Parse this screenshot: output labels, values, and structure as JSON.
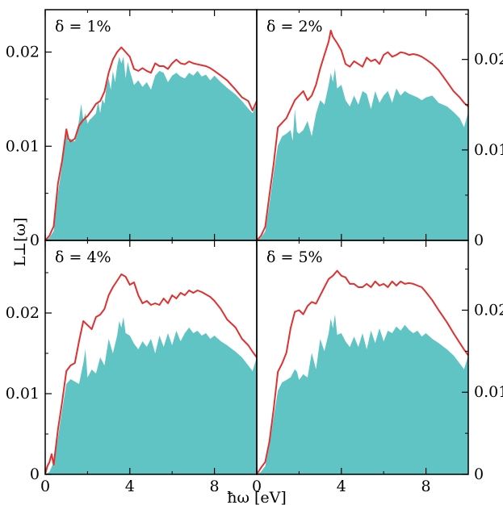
{
  "figure": {
    "xlabel": "ħω [eV]",
    "ylabel": "L⊥[ω]"
  },
  "chart_data": [
    {
      "type": "area",
      "label": "δ = 1%",
      "label_position": "top-left",
      "xlim": [
        0,
        10
      ],
      "ylim": [
        0,
        0.0245
      ],
      "xticks": [
        {
          "v": 0,
          "label": "0"
        },
        {
          "v": 4,
          "label": "4"
        },
        {
          "v": 8,
          "label": "8"
        }
      ],
      "yticks": [
        {
          "v": 0,
          "label": "0"
        },
        {
          "v": 0.01,
          "label": "0.01"
        },
        {
          "v": 0.02,
          "label": "0.02"
        }
      ],
      "ytick_side": "left",
      "series": [
        {
          "role": "fill",
          "color": "#5fc4c3",
          "x": [
            0,
            0.2,
            0.4,
            0.6,
            0.8,
            1.0,
            1.1,
            1.2,
            1.4,
            1.5,
            1.6,
            1.7,
            1.8,
            1.9,
            2.0,
            2.1,
            2.2,
            2.4,
            2.5,
            2.6,
            2.7,
            2.8,
            2.9,
            3.0,
            3.1,
            3.2,
            3.3,
            3.4,
            3.5,
            3.6,
            3.7,
            3.8,
            3.9,
            4.0,
            4.2,
            4.4,
            4.6,
            4.8,
            5.0,
            5.2,
            5.4,
            5.6,
            5.8,
            6.0,
            6.2,
            6.4,
            6.6,
            6.8,
            7.0,
            7.2,
            7.4,
            7.6,
            7.8,
            8.0,
            8.3,
            8.6,
            9.0,
            9.3,
            9.6,
            9.8,
            10.0
          ],
          "y": [
            0,
            0.0003,
            0.001,
            0.005,
            0.008,
            0.0115,
            0.0105,
            0.0108,
            0.0105,
            0.0112,
            0.0128,
            0.0145,
            0.0128,
            0.0135,
            0.0124,
            0.0128,
            0.013,
            0.0135,
            0.0148,
            0.0135,
            0.015,
            0.0145,
            0.0165,
            0.0172,
            0.016,
            0.018,
            0.0168,
            0.0185,
            0.0195,
            0.0188,
            0.0195,
            0.0172,
            0.019,
            0.018,
            0.0165,
            0.017,
            0.0163,
            0.0168,
            0.016,
            0.0175,
            0.018,
            0.0178,
            0.0168,
            0.0175,
            0.0178,
            0.0174,
            0.0172,
            0.0178,
            0.0175,
            0.018,
            0.0174,
            0.0176,
            0.017,
            0.0175,
            0.0168,
            0.0162,
            0.0155,
            0.0148,
            0.014,
            0.0135,
            0.0145
          ]
        },
        {
          "role": "line",
          "color": "#e03030",
          "x": [
            0,
            0.2,
            0.4,
            0.6,
            0.8,
            1.0,
            1.1,
            1.2,
            1.4,
            1.6,
            1.8,
            2.0,
            2.2,
            2.4,
            2.6,
            2.8,
            3.0,
            3.2,
            3.4,
            3.6,
            3.8,
            4.0,
            4.2,
            4.4,
            4.6,
            4.8,
            5.0,
            5.2,
            5.4,
            5.6,
            5.8,
            6.0,
            6.2,
            6.4,
            6.6,
            6.8,
            7.0,
            7.2,
            7.4,
            7.6,
            7.8,
            8.0,
            8.3,
            8.6,
            9.0,
            9.3,
            9.6,
            9.8,
            10.0
          ],
          "y": [
            0,
            0.0005,
            0.0015,
            0.006,
            0.0085,
            0.0118,
            0.0108,
            0.0105,
            0.0108,
            0.0122,
            0.0128,
            0.0132,
            0.0138,
            0.0145,
            0.0148,
            0.0158,
            0.0178,
            0.0192,
            0.02,
            0.0205,
            0.02,
            0.0195,
            0.0182,
            0.018,
            0.0183,
            0.018,
            0.0178,
            0.0188,
            0.0185,
            0.0185,
            0.0182,
            0.0188,
            0.0192,
            0.0188,
            0.0187,
            0.019,
            0.0188,
            0.0187,
            0.0186,
            0.0185,
            0.0183,
            0.018,
            0.0175,
            0.017,
            0.016,
            0.0152,
            0.0148,
            0.0138,
            0.0148
          ]
        }
      ]
    },
    {
      "type": "area",
      "label": "δ = 2%",
      "label_position": "top-left",
      "xlim": [
        0,
        10
      ],
      "ylim": [
        0,
        0.0255
      ],
      "xticks": [
        {
          "v": 0,
          "label": "0"
        },
        {
          "v": 4,
          "label": "4"
        },
        {
          "v": 8,
          "label": "8"
        }
      ],
      "yticks": [
        {
          "v": 0,
          "label": "0"
        },
        {
          "v": 0.01,
          "label": "0.01"
        },
        {
          "v": 0.02,
          "label": "0.02"
        }
      ],
      "ytick_side": "right",
      "series": [
        {
          "role": "fill",
          "color": "#5fc4c3",
          "x": [
            0,
            0.2,
            0.4,
            0.6,
            0.8,
            1.0,
            1.2,
            1.4,
            1.6,
            1.7,
            1.8,
            1.9,
            2.0,
            2.2,
            2.4,
            2.6,
            2.8,
            3.0,
            3.2,
            3.4,
            3.5,
            3.6,
            3.7,
            3.8,
            4.0,
            4.2,
            4.4,
            4.6,
            4.8,
            5.0,
            5.2,
            5.4,
            5.6,
            5.8,
            6.0,
            6.2,
            6.4,
            6.6,
            6.8,
            7.0,
            7.2,
            7.4,
            7.6,
            7.8,
            8.0,
            8.3,
            8.6,
            9.0,
            9.3,
            9.6,
            9.8,
            10.0
          ],
          "y": [
            0,
            0.0003,
            0.001,
            0.004,
            0.0075,
            0.0105,
            0.0115,
            0.0118,
            0.0122,
            0.011,
            0.0145,
            0.012,
            0.0118,
            0.0122,
            0.0132,
            0.0115,
            0.014,
            0.0155,
            0.015,
            0.0172,
            0.0185,
            0.0175,
            0.019,
            0.0168,
            0.0172,
            0.0155,
            0.0148,
            0.016,
            0.015,
            0.0165,
            0.0162,
            0.0145,
            0.0165,
            0.0152,
            0.016,
            0.0165,
            0.0152,
            0.0168,
            0.016,
            0.0165,
            0.0162,
            0.016,
            0.0158,
            0.0155,
            0.0158,
            0.016,
            0.0152,
            0.0148,
            0.0142,
            0.0135,
            0.0125,
            0.0142
          ]
        },
        {
          "role": "line",
          "color": "#e03030",
          "x": [
            0,
            0.2,
            0.4,
            0.6,
            0.8,
            1.0,
            1.2,
            1.4,
            1.6,
            1.8,
            2.0,
            2.2,
            2.4,
            2.6,
            2.8,
            3.0,
            3.2,
            3.4,
            3.5,
            3.6,
            3.8,
            4.0,
            4.2,
            4.4,
            4.6,
            4.8,
            5.0,
            5.2,
            5.4,
            5.6,
            5.8,
            6.0,
            6.2,
            6.4,
            6.6,
            6.8,
            7.0,
            7.2,
            7.4,
            7.6,
            7.8,
            8.0,
            8.3,
            8.6,
            9.0,
            9.3,
            9.6,
            9.8,
            10.0
          ],
          "y": [
            0,
            0.0005,
            0.0015,
            0.005,
            0.0085,
            0.0125,
            0.013,
            0.0135,
            0.0145,
            0.0155,
            0.016,
            0.0165,
            0.0155,
            0.016,
            0.0172,
            0.019,
            0.0205,
            0.022,
            0.0232,
            0.0225,
            0.0218,
            0.021,
            0.0195,
            0.0192,
            0.0198,
            0.0195,
            0.0192,
            0.0202,
            0.0198,
            0.02,
            0.0195,
            0.0205,
            0.0208,
            0.0203,
            0.0205,
            0.0208,
            0.0207,
            0.0205,
            0.0206,
            0.0205,
            0.0203,
            0.02,
            0.0195,
            0.0188,
            0.0175,
            0.0165,
            0.0158,
            0.0152,
            0.0148
          ]
        }
      ]
    },
    {
      "type": "area",
      "label": "δ = 4%",
      "label_position": "top-left",
      "xlim": [
        0,
        10
      ],
      "ylim": [
        0,
        0.029
      ],
      "xticks": [
        {
          "v": 0,
          "label": "0"
        },
        {
          "v": 4,
          "label": "4"
        },
        {
          "v": 8,
          "label": "8"
        }
      ],
      "yticks": [
        {
          "v": 0,
          "label": "0"
        },
        {
          "v": 0.01,
          "label": "0.01"
        },
        {
          "v": 0.02,
          "label": "0.02"
        }
      ],
      "ytick_side": "left",
      "series": [
        {
          "role": "fill",
          "color": "#5fc4c3",
          "x": [
            0,
            0.2,
            0.4,
            0.6,
            0.8,
            1.0,
            1.2,
            1.4,
            1.6,
            1.8,
            1.9,
            2.0,
            2.2,
            2.4,
            2.6,
            2.8,
            3.0,
            3.2,
            3.4,
            3.5,
            3.6,
            3.7,
            3.8,
            4.0,
            4.2,
            4.4,
            4.6,
            4.8,
            5.0,
            5.2,
            5.4,
            5.6,
            5.8,
            6.0,
            6.2,
            6.4,
            6.6,
            6.8,
            7.0,
            7.2,
            7.4,
            7.6,
            7.8,
            8.0,
            8.3,
            8.6,
            9.0,
            9.3,
            9.6,
            9.8,
            10.0
          ],
          "y": [
            0,
            0.0003,
            0.0015,
            0.0045,
            0.008,
            0.0112,
            0.0118,
            0.0115,
            0.0112,
            0.0138,
            0.0155,
            0.012,
            0.013,
            0.0125,
            0.0145,
            0.0135,
            0.0168,
            0.015,
            0.0172,
            0.019,
            0.0182,
            0.0195,
            0.0175,
            0.0172,
            0.0162,
            0.0155,
            0.0165,
            0.0158,
            0.0168,
            0.015,
            0.0172,
            0.0158,
            0.0175,
            0.016,
            0.0178,
            0.0165,
            0.0175,
            0.0182,
            0.0175,
            0.0178,
            0.0172,
            0.0175,
            0.0168,
            0.0172,
            0.0165,
            0.016,
            0.0152,
            0.0145,
            0.0135,
            0.0128,
            0.0145
          ]
        },
        {
          "role": "line",
          "color": "#e03030",
          "x": [
            0,
            0.1,
            0.2,
            0.3,
            0.4,
            0.6,
            0.8,
            1.0,
            1.2,
            1.4,
            1.6,
            1.8,
            2.0,
            2.2,
            2.4,
            2.6,
            2.8,
            3.0,
            3.2,
            3.4,
            3.6,
            3.8,
            4.0,
            4.2,
            4.4,
            4.6,
            4.8,
            5.0,
            5.2,
            5.4,
            5.6,
            5.8,
            6.0,
            6.2,
            6.4,
            6.6,
            6.8,
            7.0,
            7.2,
            7.4,
            7.6,
            7.8,
            8.0,
            8.3,
            8.6,
            9.0,
            9.3,
            9.6,
            9.8,
            10.0
          ],
          "y": [
            0,
            0.001,
            0.0015,
            0.0025,
            0.0012,
            0.0055,
            0.009,
            0.0128,
            0.0135,
            0.0138,
            0.0165,
            0.019,
            0.0185,
            0.018,
            0.0195,
            0.0198,
            0.0205,
            0.0222,
            0.0232,
            0.024,
            0.0248,
            0.0245,
            0.0235,
            0.0238,
            0.0222,
            0.0212,
            0.0215,
            0.021,
            0.0212,
            0.021,
            0.0218,
            0.0212,
            0.0222,
            0.0218,
            0.0225,
            0.0222,
            0.0228,
            0.0225,
            0.0228,
            0.0226,
            0.0223,
            0.022,
            0.0215,
            0.0205,
            0.0192,
            0.0182,
            0.0168,
            0.016,
            0.0152,
            0.0145
          ]
        }
      ]
    },
    {
      "type": "area",
      "label": "δ = 5%",
      "label_position": "top-left",
      "xlim": [
        0,
        10
      ],
      "ylim": [
        0,
        0.0285
      ],
      "xticks": [
        {
          "v": 0,
          "label": "0"
        },
        {
          "v": 4,
          "label": "4"
        },
        {
          "v": 8,
          "label": "8"
        }
      ],
      "yticks": [
        {
          "v": 0,
          "label": "0"
        },
        {
          "v": 0.01,
          "label": "0.01"
        },
        {
          "v": 0.02,
          "label": "0.02"
        }
      ],
      "ytick_side": "right",
      "series": [
        {
          "role": "fill",
          "color": "#5fc4c3",
          "x": [
            0,
            0.2,
            0.4,
            0.6,
            0.8,
            1.0,
            1.2,
            1.4,
            1.6,
            1.8,
            1.9,
            2.0,
            2.2,
            2.4,
            2.6,
            2.8,
            3.0,
            3.2,
            3.4,
            3.5,
            3.6,
            3.7,
            3.8,
            4.0,
            4.2,
            4.4,
            4.6,
            4.8,
            5.0,
            5.2,
            5.4,
            5.6,
            5.8,
            6.0,
            6.2,
            6.4,
            6.6,
            6.8,
            7.0,
            7.2,
            7.4,
            7.6,
            7.8,
            8.0,
            8.3,
            8.6,
            9.0,
            9.3,
            9.6,
            9.8,
            10.0
          ],
          "y": [
            0,
            0.0003,
            0.001,
            0.0035,
            0.007,
            0.0102,
            0.0112,
            0.0115,
            0.0118,
            0.0128,
            0.0125,
            0.0115,
            0.0122,
            0.0118,
            0.0148,
            0.0128,
            0.0165,
            0.015,
            0.0172,
            0.019,
            0.0178,
            0.0195,
            0.017,
            0.0172,
            0.0162,
            0.0155,
            0.0168,
            0.0155,
            0.0172,
            0.0152,
            0.0175,
            0.016,
            0.0178,
            0.0162,
            0.0175,
            0.0172,
            0.018,
            0.0175,
            0.0182,
            0.0176,
            0.0172,
            0.0175,
            0.0168,
            0.0172,
            0.0165,
            0.016,
            0.0152,
            0.0145,
            0.0135,
            0.0128,
            0.0145
          ]
        },
        {
          "role": "line",
          "color": "#e03030",
          "x": [
            0,
            0.2,
            0.4,
            0.6,
            0.8,
            1.0,
            1.2,
            1.4,
            1.6,
            1.8,
            2.0,
            2.2,
            2.4,
            2.6,
            2.8,
            3.0,
            3.2,
            3.4,
            3.6,
            3.8,
            4.0,
            4.2,
            4.4,
            4.6,
            4.8,
            5.0,
            5.2,
            5.4,
            5.6,
            5.8,
            6.0,
            6.2,
            6.4,
            6.6,
            6.8,
            7.0,
            7.2,
            7.4,
            7.6,
            7.8,
            8.0,
            8.3,
            8.6,
            9.0,
            9.3,
            9.6,
            9.8,
            10.0
          ],
          "y": [
            0,
            0.0008,
            0.0015,
            0.004,
            0.008,
            0.0125,
            0.0135,
            0.0148,
            0.0178,
            0.0198,
            0.02,
            0.0195,
            0.0205,
            0.021,
            0.0208,
            0.0218,
            0.0228,
            0.0238,
            0.0242,
            0.0248,
            0.0242,
            0.024,
            0.0232,
            0.0232,
            0.0228,
            0.0228,
            0.0232,
            0.0228,
            0.0235,
            0.023,
            0.0232,
            0.0228,
            0.0235,
            0.023,
            0.0235,
            0.0232,
            0.0233,
            0.0232,
            0.023,
            0.0228,
            0.0222,
            0.0212,
            0.02,
            0.0185,
            0.0172,
            0.016,
            0.0152,
            0.0145
          ]
        }
      ]
    }
  ]
}
